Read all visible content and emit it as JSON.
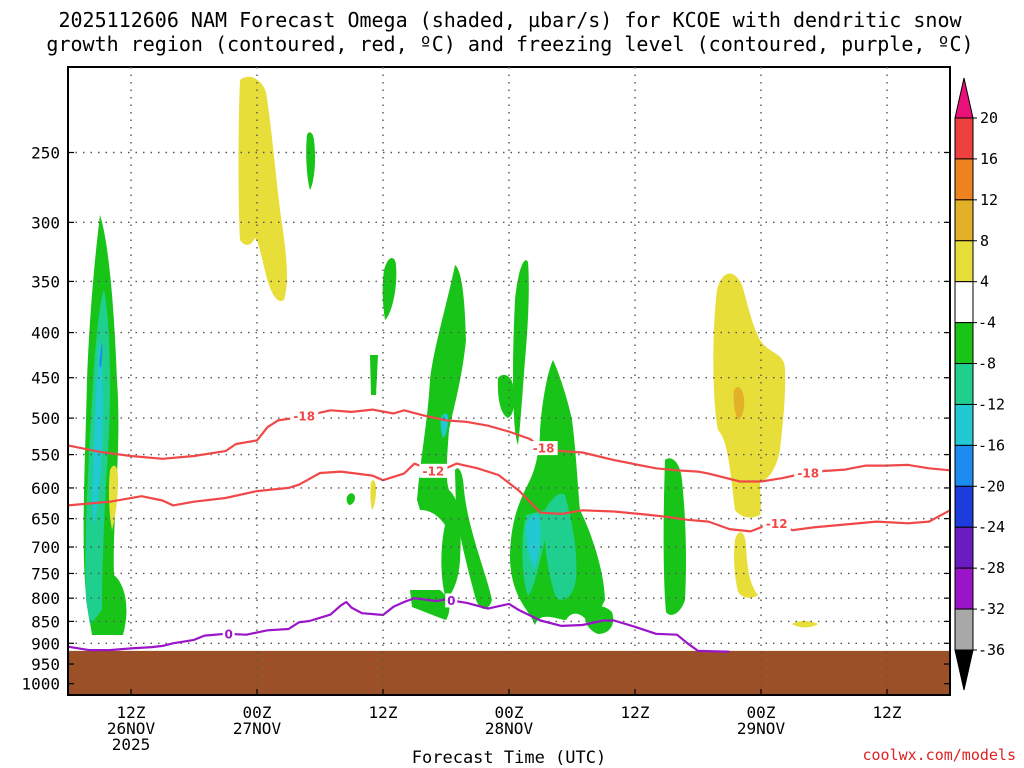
{
  "chart_data": {
    "type": "heatmap",
    "title_lines": [
      "2025112606 NAM Forecast Omega (shaded, µbar/s) for KCOE with dendritic snow",
      "growth region (contoured, red, ºC) and freezing level (contoured, purple, ºC)"
    ],
    "xlabel": "Forecast Time (UTC)",
    "ylabel": "",
    "x_range_hours": [
      0,
      84
    ],
    "y_range_hPa": [
      200,
      1030
    ],
    "y_ticks": [
      250,
      300,
      350,
      400,
      450,
      500,
      550,
      600,
      650,
      700,
      750,
      800,
      850,
      900,
      950,
      1000
    ],
    "x_ticks": [
      {
        "hour": 6,
        "time": "12Z",
        "date": "26NOV",
        "year": "2025"
      },
      {
        "hour": 18,
        "time": "00Z",
        "date": "27NOV",
        "year": ""
      },
      {
        "hour": 30,
        "time": "12Z",
        "date": "",
        "year": ""
      },
      {
        "hour": 42,
        "time": "00Z",
        "date": "28NOV",
        "year": ""
      },
      {
        "hour": 54,
        "time": "12Z",
        "date": "",
        "year": ""
      },
      {
        "hour": 66,
        "time": "00Z",
        "date": "29NOV",
        "year": ""
      },
      {
        "hour": 78,
        "time": "12Z",
        "date": "",
        "year": ""
      }
    ],
    "colorbar": {
      "levels": [
        20,
        16,
        12,
        8,
        4,
        -4,
        -8,
        -12,
        -16,
        -20,
        -24,
        -28,
        -32,
        -36
      ],
      "colors": [
        "#e8117a",
        "#ef4040",
        "#ee8420",
        "#e2b128",
        "#e8de3a",
        "#ffffff",
        "#18c418",
        "#1fcf8e",
        "#22c8d2",
        "#1d8cf0",
        "#1c3cdc",
        "#6a1cc0",
        "#9a14c8",
        "#a8a8a8",
        "#000000"
      ]
    },
    "ground_pressure_hPa": 918,
    "ground_color": "#9c5028",
    "contours": [
      {
        "name": "-18C",
        "label": "-18",
        "color": "#f04848",
        "points": [
          [
            0,
            537
          ],
          [
            3,
            546
          ],
          [
            6,
            552
          ],
          [
            9,
            556
          ],
          [
            12,
            552
          ],
          [
            15,
            545
          ],
          [
            16,
            535
          ],
          [
            18,
            530
          ],
          [
            19,
            512
          ],
          [
            20,
            503
          ],
          [
            22,
            499
          ],
          [
            25,
            490
          ],
          [
            27,
            492
          ],
          [
            29,
            489
          ],
          [
            31,
            494
          ],
          [
            32,
            490
          ],
          [
            34,
            497
          ],
          [
            36,
            503
          ],
          [
            38,
            505
          ],
          [
            40,
            510
          ],
          [
            42,
            518
          ],
          [
            44,
            528
          ],
          [
            45,
            540
          ],
          [
            47,
            545
          ],
          [
            49,
            547
          ],
          [
            52,
            558
          ],
          [
            56,
            570
          ],
          [
            58,
            573
          ],
          [
            60,
            575
          ],
          [
            61,
            578
          ],
          [
            64,
            590
          ],
          [
            66,
            590
          ],
          [
            68,
            585
          ],
          [
            70,
            578
          ],
          [
            72,
            574
          ],
          [
            74,
            572
          ],
          [
            76,
            566
          ],
          [
            78,
            566
          ],
          [
            80,
            565
          ],
          [
            82,
            570
          ],
          [
            84,
            573
          ]
        ],
        "labels": [
          [
            22.5,
            "-18"
          ],
          [
            45.3,
            "-18"
          ],
          [
            70.5,
            "-18"
          ]
        ]
      },
      {
        "name": "-12C",
        "label": "-12",
        "color": "#f04848",
        "points": [
          [
            0,
            628
          ],
          [
            4,
            622
          ],
          [
            7,
            613
          ],
          [
            9,
            620
          ],
          [
            10,
            628
          ],
          [
            12,
            622
          ],
          [
            15,
            616
          ],
          [
            18,
            605
          ],
          [
            21,
            600
          ],
          [
            22,
            595
          ],
          [
            24,
            577
          ],
          [
            26,
            575
          ],
          [
            29,
            581
          ],
          [
            30,
            588
          ],
          [
            32,
            578
          ],
          [
            33,
            563
          ],
          [
            35,
            575
          ],
          [
            36,
            570
          ],
          [
            37,
            563
          ],
          [
            39,
            570
          ],
          [
            41,
            580
          ],
          [
            43,
            605
          ],
          [
            45,
            640
          ],
          [
            47,
            642
          ],
          [
            49,
            636
          ],
          [
            52,
            638
          ],
          [
            55,
            643
          ],
          [
            57,
            647
          ],
          [
            59,
            652
          ],
          [
            61,
            655
          ],
          [
            63,
            668
          ],
          [
            65,
            672
          ],
          [
            66,
            665
          ],
          [
            67,
            655
          ],
          [
            69,
            670
          ],
          [
            71,
            665
          ],
          [
            74,
            660
          ],
          [
            77,
            655
          ],
          [
            80,
            658
          ],
          [
            82,
            655
          ],
          [
            84,
            636
          ]
        ],
        "labels": [
          [
            34.8,
            "-12"
          ],
          [
            67.5,
            "-12"
          ]
        ]
      },
      {
        "name": "0C",
        "label": "0",
        "color": "#9a14c8",
        "points": [
          [
            0,
            908
          ],
          [
            2,
            916
          ],
          [
            4,
            916
          ],
          [
            6,
            912
          ],
          [
            8,
            909
          ],
          [
            9,
            906
          ],
          [
            10,
            900
          ],
          [
            12,
            892
          ],
          [
            13,
            882
          ],
          [
            15,
            878
          ],
          [
            17,
            880
          ],
          [
            19,
            870
          ],
          [
            21,
            867
          ],
          [
            22,
            852
          ],
          [
            23,
            849
          ],
          [
            25,
            835
          ],
          [
            26,
            815
          ],
          [
            26.5,
            808
          ],
          [
            27,
            820
          ],
          [
            28,
            832
          ],
          [
            30,
            836
          ],
          [
            31,
            818
          ],
          [
            32,
            808
          ],
          [
            33,
            800
          ],
          [
            35,
            806
          ],
          [
            36,
            803
          ],
          [
            38,
            810
          ],
          [
            40,
            822
          ],
          [
            42,
            812
          ],
          [
            43,
            826
          ],
          [
            45,
            848
          ],
          [
            47,
            860
          ],
          [
            49,
            858
          ],
          [
            51,
            848
          ],
          [
            52,
            848
          ],
          [
            54,
            862
          ],
          [
            56,
            878
          ],
          [
            58,
            880
          ],
          [
            59,
            900
          ],
          [
            60,
            918
          ],
          [
            63,
            920
          ]
        ],
        "labels": [
          [
            15.3,
            "0"
          ],
          [
            36.5,
            "0"
          ]
        ]
      }
    ]
  },
  "credit": "coolwx.com/models"
}
